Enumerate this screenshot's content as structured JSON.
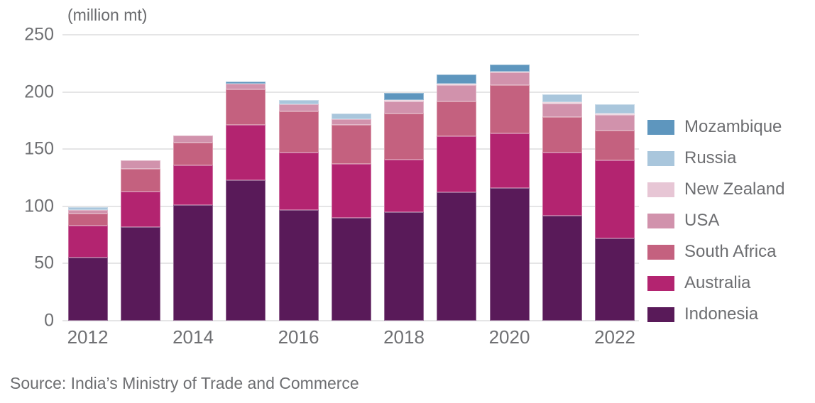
{
  "title": "(million mt)",
  "source": "Source: India’s Ministry of Trade and Commerce",
  "chart_data": {
    "type": "bar",
    "stacked": true,
    "title": "(million mt)",
    "ylabel": "(million mt)",
    "xlabel": "",
    "ylim": [
      0,
      250
    ],
    "y_ticks": [
      0,
      50,
      100,
      150,
      200,
      250
    ],
    "grid": "horizontal",
    "legend_position": "right",
    "legend_order_top_to_bottom": [
      "Mozambique",
      "Russia",
      "New Zealand",
      "USA",
      "South Africa",
      "Australia",
      "Indonesia"
    ],
    "categories": [
      2012,
      2013,
      2014,
      2015,
      2016,
      2017,
      2018,
      2019,
      2020,
      2021,
      2022
    ],
    "x_tick_labels": [
      "2012",
      "2014",
      "2016",
      "2018",
      "2020",
      "2022"
    ],
    "series": [
      {
        "name": "Indonesia",
        "color": "#591a59",
        "values": [
          55,
          82,
          101,
          123,
          97,
          90,
          95,
          112,
          116,
          92,
          72
        ]
      },
      {
        "name": "Australia",
        "color": "#b32470",
        "values": [
          28,
          31,
          35,
          48,
          50,
          47,
          46,
          49,
          48,
          55,
          68
        ]
      },
      {
        "name": "South Africa",
        "color": "#c4617f",
        "values": [
          11,
          20,
          20,
          31,
          36,
          34,
          40,
          31,
          42,
          31,
          26
        ]
      },
      {
        "name": "USA",
        "color": "#d192ac",
        "values": [
          3,
          7,
          6,
          5,
          6,
          5,
          11,
          14,
          11,
          12,
          14
        ]
      },
      {
        "name": "New Zealand",
        "color": "#e7c6d5",
        "values": [
          0,
          0,
          0,
          0,
          0,
          0,
          1,
          1,
          1,
          1,
          1
        ]
      },
      {
        "name": "Russia",
        "color": "#a9c6dc",
        "values": [
          2,
          0,
          0,
          0,
          4,
          5,
          0,
          0,
          0,
          7,
          8
        ]
      },
      {
        "name": "Mozambique",
        "color": "#5e96be",
        "values": [
          0,
          0,
          0,
          2,
          0,
          0,
          6,
          8,
          6,
          0,
          0
        ]
      }
    ],
    "totals": [
      99,
      140,
      162,
      209,
      193,
      181,
      199,
      215,
      224,
      198,
      189
    ]
  }
}
